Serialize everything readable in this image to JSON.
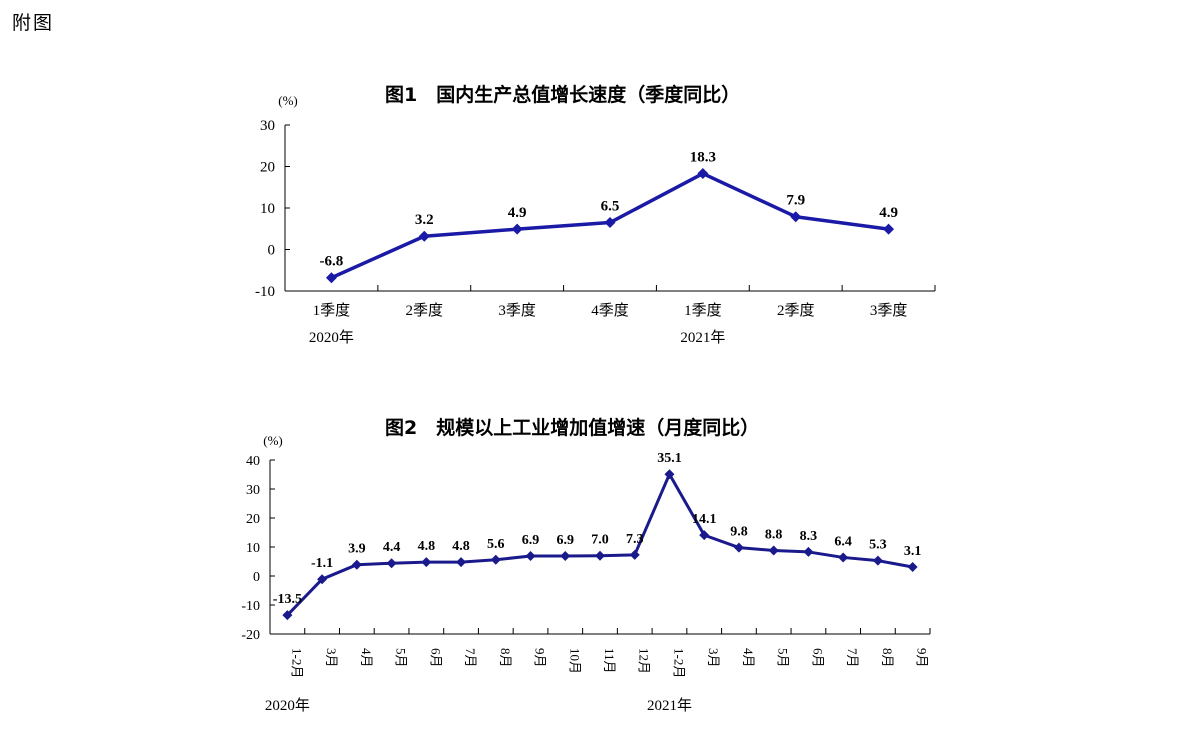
{
  "page_label": "附图",
  "chart_data": [
    {
      "type": "line",
      "title": "图1　国内生产总值增长速度（季度同比）",
      "ylabel": "(%)",
      "ylim": [
        -10,
        30
      ],
      "yticks": [
        "30",
        "20",
        "10",
        "0",
        "-10"
      ],
      "yticks_values": [
        30,
        20,
        10,
        0,
        -10
      ],
      "categories": [
        "1季度",
        "2季度",
        "3季度",
        "4季度",
        "1季度",
        "2季度",
        "3季度"
      ],
      "year_labels": [
        {
          "label": "2020年",
          "category_index": 0
        },
        {
          "label": "2021年",
          "category_index": 4
        }
      ],
      "values": [
        -6.8,
        3.2,
        4.9,
        6.5,
        18.3,
        7.9,
        4.9
      ],
      "value_labels": [
        "-6.8",
        "3.2",
        "4.9",
        "6.5",
        "18.3",
        "7.9",
        "4.9"
      ],
      "line_color": "#1a1aa6",
      "grid": false
    },
    {
      "type": "line",
      "title": "图2　规模以上工业增加值增速（月度同比）",
      "ylabel": "(%)",
      "ylim": [
        -20,
        40
      ],
      "yticks": [
        "40",
        "30",
        "20",
        "10",
        "0",
        "-10",
        "-20"
      ],
      "yticks_values": [
        40,
        30,
        20,
        10,
        0,
        -10,
        -20
      ],
      "categories": [
        "1-2月",
        "3月",
        "4月",
        "5月",
        "6月",
        "7月",
        "8月",
        "9月",
        "10月",
        "11月",
        "12月",
        "1-2月",
        "3月",
        "4月",
        "5月",
        "6月",
        "7月",
        "8月",
        "9月"
      ],
      "year_labels": [
        {
          "label": "2020年",
          "category_index": 0
        },
        {
          "label": "2021年",
          "category_index": 11
        }
      ],
      "values": [
        -13.5,
        -1.1,
        3.9,
        4.4,
        4.8,
        4.8,
        5.6,
        6.9,
        6.9,
        7.0,
        7.3,
        35.1,
        14.1,
        9.8,
        8.8,
        8.3,
        6.4,
        5.3,
        3.1
      ],
      "value_labels": [
        "-13.5",
        "-1.1",
        "3.9",
        "4.4",
        "4.8",
        "4.8",
        "5.6",
        "6.9",
        "6.9",
        "7.0",
        "7.3",
        "35.1",
        "14.1",
        "9.8",
        "8.8",
        "8.3",
        "6.4",
        "5.3",
        "3.1"
      ],
      "line_color": "#1a1a8c",
      "grid": false
    }
  ]
}
